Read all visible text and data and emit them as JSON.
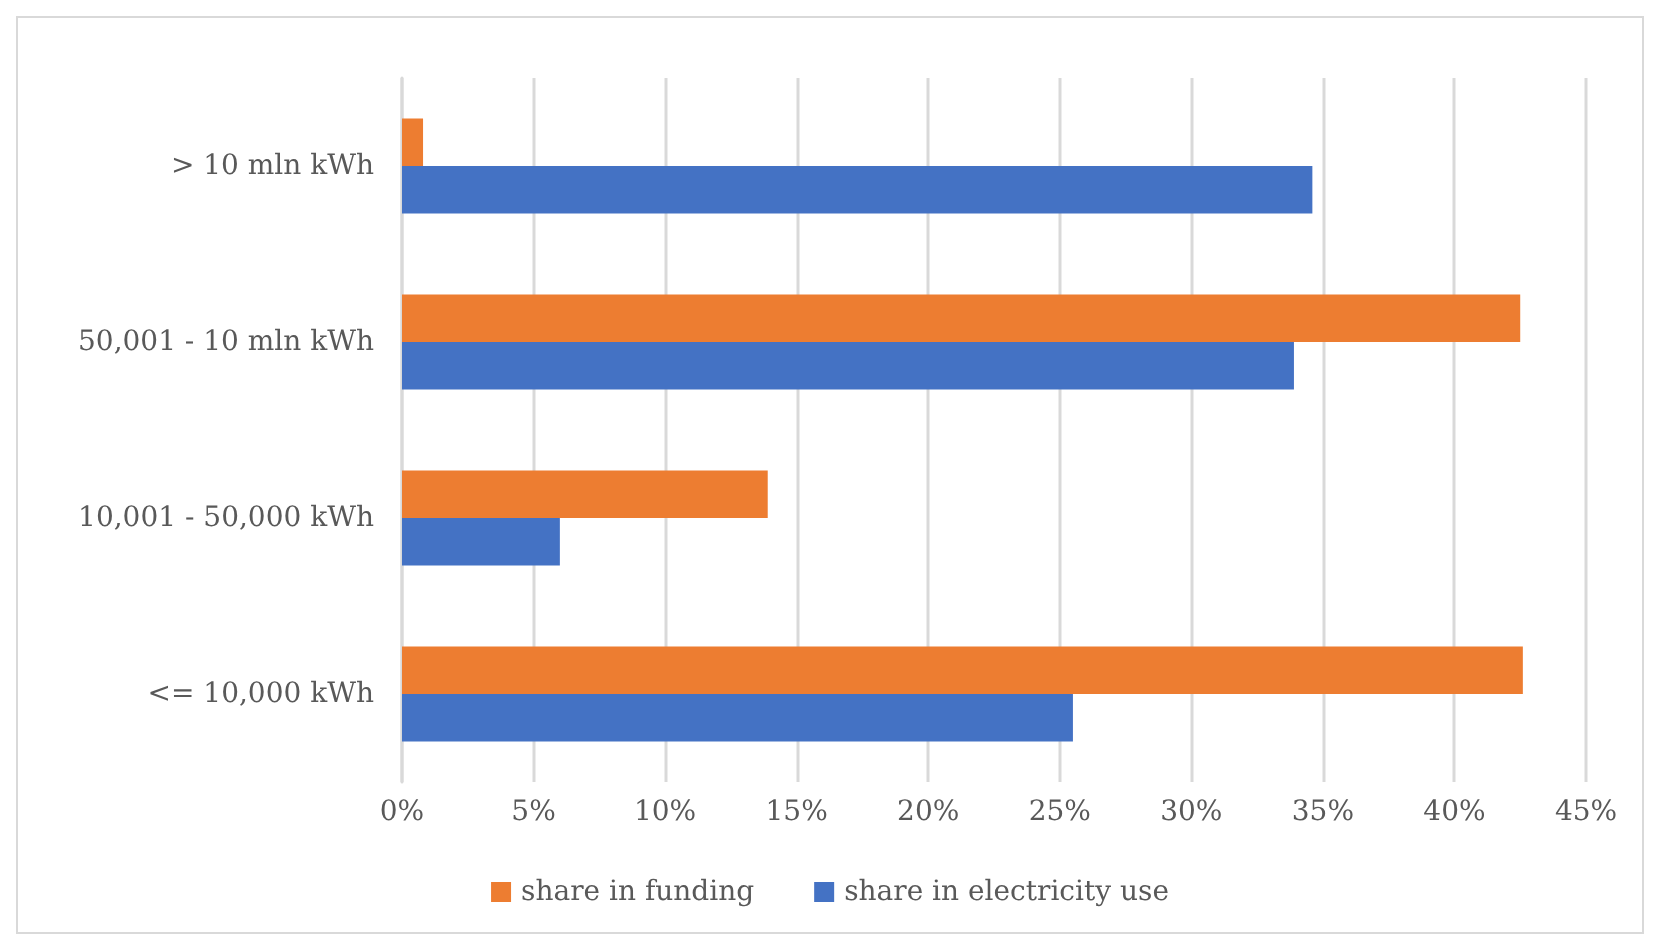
{
  "chart_data": {
    "type": "bar",
    "orientation": "horizontal",
    "categories": [
      "> 10 mln kWh",
      "50,001 - 10 mln kWh",
      "10,001 - 50,000 kWh",
      "<= 10,000 kWh"
    ],
    "series": [
      {
        "name": "share in funding",
        "color": "#ed7d31",
        "values": [
          0.8,
          42.5,
          13.9,
          42.6
        ]
      },
      {
        "name": "share in electricity use",
        "color": "#4472c4",
        "values": [
          34.6,
          33.9,
          6.0,
          25.5
        ]
      }
    ],
    "xlim": [
      0,
      45
    ],
    "xticks": [
      {
        "value": 0,
        "label": "0%"
      },
      {
        "value": 5,
        "label": "5%"
      },
      {
        "value": 10,
        "label": "10%"
      },
      {
        "value": 15,
        "label": "15%"
      },
      {
        "value": 20,
        "label": "20%"
      },
      {
        "value": 25,
        "label": "25%"
      },
      {
        "value": 30,
        "label": "30%"
      },
      {
        "value": 35,
        "label": "35%"
      },
      {
        "value": 40,
        "label": "40%"
      },
      {
        "value": 45,
        "label": "45%"
      }
    ],
    "grid": "x",
    "legend": "bottom"
  }
}
